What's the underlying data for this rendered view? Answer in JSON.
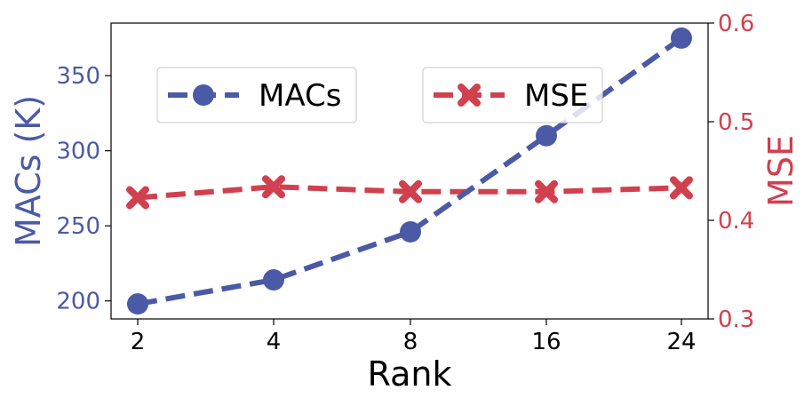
{
  "chart_data": {
    "type": "line",
    "xlabel": "Rank",
    "categories": [
      "2",
      "4",
      "8",
      "16",
      "24"
    ],
    "y_left": {
      "label": "MACs (K)",
      "ticks": [
        200,
        250,
        300,
        350
      ],
      "range": [
        188,
        385
      ],
      "color": "#4b5aa6"
    },
    "y_right": {
      "label": "MSE",
      "ticks": [
        0.3,
        0.4,
        0.5,
        0.6
      ],
      "tick_labels": [
        "0.3",
        "0.4",
        "0.5",
        "0.6"
      ],
      "range": [
        0.3,
        0.6
      ],
      "color": "#d1404e"
    },
    "series": [
      {
        "name": "MACs",
        "axis": "left",
        "values": [
          198,
          214,
          246,
          310,
          375
        ],
        "color": "#4b5aa6",
        "marker": "circle",
        "line_style": "dashed"
      },
      {
        "name": "MSE",
        "axis": "right",
        "values": [
          0.423,
          0.434,
          0.429,
          0.429,
          0.433
        ],
        "color": "#d1404e",
        "marker": "x",
        "line_style": "dashed"
      }
    ],
    "legend": "top",
    "grid": false
  }
}
